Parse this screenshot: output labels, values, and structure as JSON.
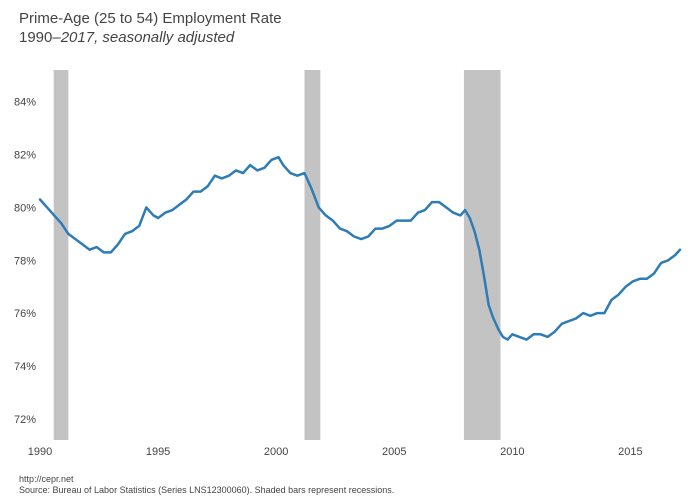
{
  "chart_data": {
    "type": "line",
    "title": "Prime-Age (25 to 54) Employment Rate",
    "subtitle_prefix": "1990–",
    "subtitle_italic": "2017, seasonally adjusted",
    "xlabel": "",
    "ylabel": "",
    "xlim": [
      1990,
      2017.1
    ],
    "ylim": [
      71.2,
      85.2
    ],
    "xticks": [
      1990,
      1995,
      2000,
      2005,
      2010,
      2015
    ],
    "xtick_labels": [
      "1990",
      "1995",
      "2000",
      "2005",
      "2010",
      "2015"
    ],
    "yticks": [
      72,
      74,
      76,
      78,
      80,
      82,
      84
    ],
    "ytick_labels": [
      "72%",
      "74%",
      "76%",
      "78%",
      "80%",
      "82%",
      "84%"
    ],
    "grid": false,
    "recessions": [
      {
        "start": 1990.58,
        "end": 1991.2
      },
      {
        "start": 2001.2,
        "end": 2001.87
      },
      {
        "start": 2007.95,
        "end": 2009.5
      }
    ],
    "series": [
      {
        "name": "Prime-age employment rate",
        "color": "#2e7cb6",
        "x": [
          1990.0,
          1990.3,
          1990.6,
          1990.9,
          1991.2,
          1991.5,
          1991.8,
          1992.1,
          1992.4,
          1992.7,
          1993.0,
          1993.3,
          1993.6,
          1993.9,
          1994.2,
          1994.5,
          1994.8,
          1995.0,
          1995.3,
          1995.6,
          1995.9,
          1996.2,
          1996.5,
          1996.8,
          1997.1,
          1997.4,
          1997.7,
          1998.0,
          1998.3,
          1998.6,
          1998.9,
          1999.2,
          1999.5,
          1999.8,
          2000.1,
          2000.3,
          2000.6,
          2000.9,
          2001.2,
          2001.5,
          2001.8,
          2002.1,
          2002.4,
          2002.7,
          2003.0,
          2003.3,
          2003.6,
          2003.9,
          2004.2,
          2004.5,
          2004.8,
          2005.1,
          2005.4,
          2005.7,
          2006.0,
          2006.3,
          2006.6,
          2006.9,
          2007.2,
          2007.5,
          2007.8,
          2008.0,
          2008.2,
          2008.4,
          2008.6,
          2008.8,
          2009.0,
          2009.2,
          2009.4,
          2009.6,
          2009.8,
          2010.0,
          2010.3,
          2010.6,
          2010.9,
          2011.2,
          2011.5,
          2011.8,
          2012.1,
          2012.4,
          2012.7,
          2013.0,
          2013.3,
          2013.6,
          2013.9,
          2014.2,
          2014.5,
          2014.8,
          2015.1,
          2015.4,
          2015.7,
          2016.0,
          2016.3,
          2016.6,
          2016.9,
          2017.1
        ],
        "values": [
          80.3,
          80.0,
          79.7,
          79.4,
          79.0,
          78.8,
          78.6,
          78.4,
          78.5,
          78.3,
          78.3,
          78.6,
          79.0,
          79.1,
          79.3,
          80.0,
          79.7,
          79.6,
          79.8,
          79.9,
          80.1,
          80.3,
          80.6,
          80.6,
          80.8,
          81.2,
          81.1,
          81.2,
          81.4,
          81.3,
          81.6,
          81.4,
          81.5,
          81.8,
          81.9,
          81.6,
          81.3,
          81.2,
          81.3,
          80.7,
          80.0,
          79.7,
          79.5,
          79.2,
          79.1,
          78.9,
          78.8,
          78.9,
          79.2,
          79.2,
          79.3,
          79.5,
          79.5,
          79.5,
          79.8,
          79.9,
          80.2,
          80.2,
          80.0,
          79.8,
          79.7,
          79.9,
          79.6,
          79.1,
          78.4,
          77.4,
          76.3,
          75.8,
          75.4,
          75.1,
          75.0,
          75.2,
          75.1,
          75.0,
          75.2,
          75.2,
          75.1,
          75.3,
          75.6,
          75.7,
          75.8,
          76.0,
          75.9,
          76.0,
          76.0,
          76.5,
          76.7,
          77.0,
          77.2,
          77.3,
          77.3,
          77.5,
          77.9,
          78.0,
          78.2,
          78.4
        ]
      }
    ]
  },
  "footer": {
    "url": "http://cepr.net",
    "source": "Source: Bureau of Labor Statistics (Series LNS12300060). Shaded bars represent recessions."
  }
}
